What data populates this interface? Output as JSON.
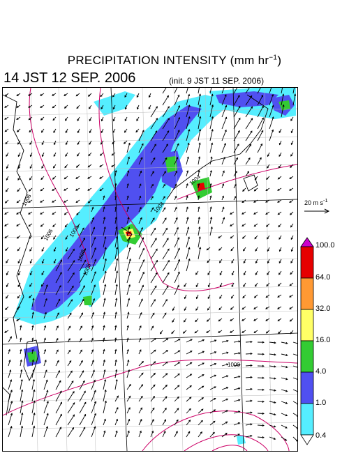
{
  "header": {
    "title": "PRECIPITATION INTENSITY (mm hr",
    "title_unit_exp": "−1",
    "title_close": ")",
    "valid_time": "14 JST 12 SEP. 2006",
    "init_time": "(init. 9 JST 11 SEP. 2006)"
  },
  "wind_reference": {
    "label": "20 m s",
    "label_exp": "-1"
  },
  "legend": {
    "levels": [
      {
        "label": "100.0",
        "color": "#cc00cc"
      },
      {
        "label": "64.0",
        "color": "#e60000"
      },
      {
        "label": "32.0",
        "color": "#ff9933"
      },
      {
        "label": "16.0",
        "color": "#ffff66"
      },
      {
        "label": "4.0",
        "color": "#33cc33"
      },
      {
        "label": "1.0",
        "color": "#5050f0"
      },
      {
        "label": "0.4",
        "color": "#55eeff"
      }
    ]
  },
  "isobars": {
    "color": "#cc0066",
    "labels": [
      "1006",
      "1008",
      "1006",
      "1004",
      "1004",
      "1008",
      "1000",
      "1002"
    ]
  }
}
